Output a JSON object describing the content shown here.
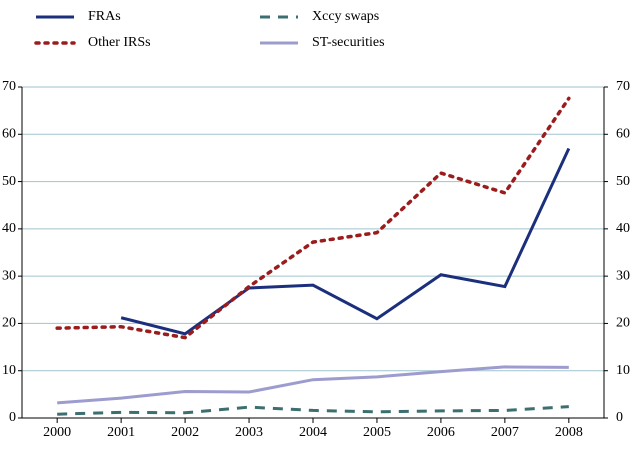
{
  "chart_data": {
    "type": "line",
    "x": [
      2000,
      2001,
      2002,
      2003,
      2004,
      2005,
      2006,
      2007,
      2008
    ],
    "series": [
      {
        "name": "FRAs",
        "color": "#1b2f7c",
        "dash": "solid",
        "values": [
          null,
          21.2,
          17.8,
          27.5,
          28.1,
          21,
          30.3,
          27.8,
          57
        ]
      },
      {
        "name": "Xccy swaps",
        "color": "#3d6e70",
        "dash": "dashed",
        "values": [
          0.8,
          1.2,
          1.1,
          2.3,
          1.6,
          1.3,
          1.5,
          1.6,
          2.4
        ]
      },
      {
        "name": "Other IRSs",
        "color": "#9b1c1c",
        "dash": "dotted",
        "values": [
          19,
          19.3,
          17,
          27.8,
          37.2,
          39.2,
          51.8,
          47.6,
          67.6
        ]
      },
      {
        "name": "ST-securities",
        "color": "#9d9ccf",
        "dash": "solid",
        "values": [
          3.2,
          4.2,
          5.6,
          5.5,
          8.1,
          8.7,
          9.8,
          10.8,
          10.7
        ]
      }
    ],
    "xlim": [
      1999.45,
      2008.55
    ],
    "ylim": [
      0,
      70
    ],
    "yticks": [
      0,
      10,
      20,
      30,
      40,
      50,
      60,
      70
    ],
    "y2lim": [
      0,
      70
    ],
    "y2ticks": [
      0,
      10,
      20,
      30,
      40,
      50,
      60,
      70
    ],
    "grid": true
  }
}
